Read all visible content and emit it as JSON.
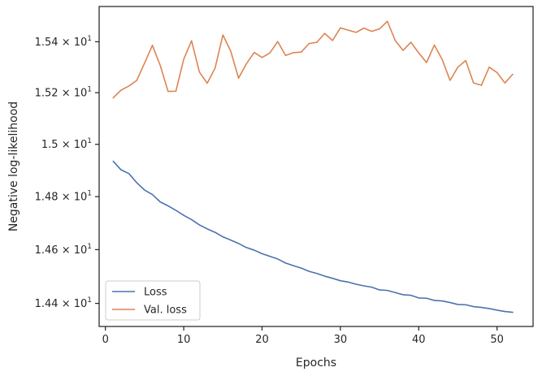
{
  "chart_data": {
    "type": "line",
    "title": "",
    "xlabel": "Epochs",
    "ylabel": "Negative log-likelihood",
    "xlim": [
      -0.8,
      54.6
    ],
    "ylim": [
      14.315,
      15.54
    ],
    "y_scale": "log",
    "grid": false,
    "legend_position": "lower-left",
    "x_ticks": [
      {
        "value": 0,
        "label": "0"
      },
      {
        "value": 10,
        "label": "10"
      },
      {
        "value": 20,
        "label": "20"
      },
      {
        "value": 30,
        "label": "30"
      },
      {
        "value": 40,
        "label": "40"
      },
      {
        "value": 50,
        "label": "50"
      }
    ],
    "y_ticks": [
      {
        "value": 14.4,
        "base": "1.44",
        "exp": "1"
      },
      {
        "value": 14.6,
        "base": "1.46",
        "exp": "1"
      },
      {
        "value": 14.8,
        "base": "1.48",
        "exp": "1"
      },
      {
        "value": 15.0,
        "base": "1.5",
        "exp": "1"
      },
      {
        "value": 15.2,
        "base": "1.52",
        "exp": "1"
      },
      {
        "value": 15.4,
        "base": "1.54",
        "exp": "1"
      }
    ],
    "x": [
      1,
      2,
      3,
      4,
      5,
      6,
      7,
      8,
      9,
      10,
      11,
      12,
      13,
      14,
      15,
      16,
      17,
      18,
      19,
      20,
      21,
      22,
      23,
      24,
      25,
      26,
      27,
      28,
      29,
      30,
      31,
      32,
      33,
      34,
      35,
      36,
      37,
      38,
      39,
      40,
      41,
      42,
      43,
      44,
      45,
      46,
      47,
      48,
      49,
      50,
      51,
      52
    ],
    "series": [
      {
        "name": "Loss",
        "color": "#4c72b0",
        "values": [
          14.935,
          14.902,
          14.888,
          14.853,
          14.825,
          14.808,
          14.78,
          14.765,
          14.748,
          14.729,
          14.713,
          14.693,
          14.678,
          14.665,
          14.648,
          14.636,
          14.623,
          14.608,
          14.598,
          14.585,
          14.575,
          14.565,
          14.55,
          14.54,
          14.531,
          14.519,
          14.511,
          14.501,
          14.493,
          14.484,
          14.479,
          14.471,
          14.465,
          14.46,
          14.45,
          14.448,
          14.44,
          14.432,
          14.43,
          14.42,
          14.419,
          14.411,
          14.409,
          14.403,
          14.396,
          14.395,
          14.388,
          14.385,
          14.381,
          14.375,
          14.37,
          14.367
        ]
      },
      {
        "name": "Val. loss",
        "color": "#dd8452",
        "values": [
          15.18,
          15.21,
          15.226,
          15.248,
          15.316,
          15.386,
          15.307,
          15.205,
          15.206,
          15.331,
          15.404,
          15.281,
          15.237,
          15.296,
          15.427,
          15.363,
          15.257,
          15.313,
          15.358,
          15.338,
          15.356,
          15.401,
          15.346,
          15.357,
          15.359,
          15.393,
          15.398,
          15.433,
          15.405,
          15.455,
          15.446,
          15.437,
          15.454,
          15.441,
          15.451,
          15.481,
          15.405,
          15.366,
          15.398,
          15.356,
          15.318,
          15.387,
          15.33,
          15.248,
          15.3,
          15.326,
          15.238,
          15.229,
          15.3,
          15.279,
          15.238,
          15.272
        ]
      }
    ]
  }
}
